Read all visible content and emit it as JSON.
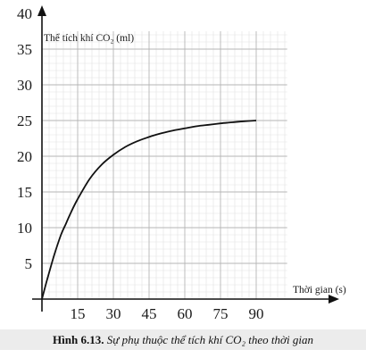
{
  "chart_data": {
    "type": "line",
    "ylabel": "Thể tích khí CO₂ (ml)",
    "xlabel": "Thời gian (s)",
    "x_ticks": [
      15,
      30,
      45,
      60,
      75,
      90
    ],
    "y_ticks": [
      5,
      10,
      15,
      20,
      25,
      30,
      35,
      40
    ],
    "xlim": [
      0,
      105
    ],
    "ylim": [
      0,
      42
    ],
    "grid": true,
    "series": [
      {
        "x": [
          0,
          2,
          5,
          8,
          10,
          12,
          15,
          20,
          25,
          30,
          35,
          40,
          45,
          50,
          55,
          60,
          65,
          70,
          75,
          80,
          85,
          90
        ],
        "y": [
          0,
          2.5,
          6,
          9,
          10.5,
          12,
          14,
          16.8,
          18.8,
          20.2,
          21.3,
          22.1,
          22.7,
          23.2,
          23.6,
          23.9,
          24.2,
          24.4,
          24.6,
          24.75,
          24.9,
          25
        ],
        "color": "#111111"
      }
    ]
  },
  "caption": {
    "label": "Hình 6.13.",
    "text": "Sự phụ thuộc thể tích khí CO₂ theo thời gian"
  }
}
